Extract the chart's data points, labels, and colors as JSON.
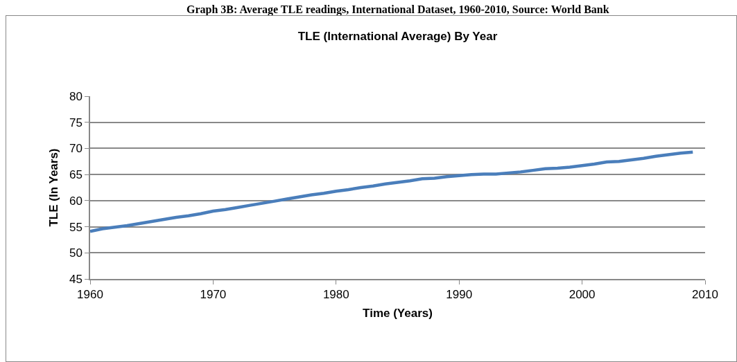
{
  "chart_data": {
    "type": "line",
    "title": "TLE (International Average) By Year",
    "xlabel": "Time (Years)",
    "ylabel": "TLE (In Years)",
    "annotations": [
      "Graph 3B: Average TLE readings, International Dataset, 1960-2010, Source: World Bank"
    ],
    "x": [
      1960,
      1961,
      1962,
      1963,
      1964,
      1965,
      1966,
      1967,
      1968,
      1969,
      1970,
      1971,
      1972,
      1973,
      1974,
      1975,
      1976,
      1977,
      1978,
      1979,
      1980,
      1981,
      1982,
      1983,
      1984,
      1985,
      1986,
      1987,
      1988,
      1989,
      1990,
      1991,
      1992,
      1993,
      1994,
      1995,
      1996,
      1997,
      1998,
      1999,
      2000,
      2001,
      2002,
      2003,
      2004,
      2005,
      2006,
      2007,
      2008,
      2009
    ],
    "series": [
      {
        "color": "#4a7ebb",
        "values": [
          54.1,
          54.6,
          54.9,
          55.2,
          55.6,
          56.0,
          56.4,
          56.8,
          57.1,
          57.5,
          58.0,
          58.3,
          58.7,
          59.1,
          59.5,
          59.9,
          60.3,
          60.7,
          61.1,
          61.4,
          61.8,
          62.1,
          62.5,
          62.8,
          63.2,
          63.5,
          63.8,
          64.2,
          64.3,
          64.6,
          64.8,
          65.0,
          65.1,
          65.1,
          65.3,
          65.5,
          65.8,
          66.1,
          66.2,
          66.4,
          66.7,
          67.0,
          67.4,
          67.5,
          67.8,
          68.1,
          68.5,
          68.8,
          69.1,
          69.3
        ]
      }
    ],
    "xlim": [
      1960,
      2010
    ],
    "xticks": [
      1960,
      1970,
      1980,
      1990,
      2000,
      2010
    ],
    "ylim": [
      45,
      80
    ],
    "yticks": [
      45,
      50,
      55,
      60,
      65,
      70,
      75,
      80
    ],
    "grid": "y",
    "marker": "none",
    "line_style": "solid"
  }
}
